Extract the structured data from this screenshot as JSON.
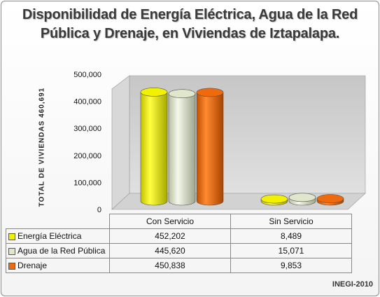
{
  "title_line1": "Disponibilidad de Energía Eléctrica, Agua de la Red",
  "title_line2": "Pública y Drenaje, en Viviendas de Iztapalapa.",
  "source": "INEGI-2010",
  "chart_data": {
    "type": "bar",
    "title": "Disponibilidad de Energía Eléctrica, Agua de la Red Pública y Drenaje, en Viviendas de Iztapalapa.",
    "ylabel": "TOTAL DE VIVIENDAS  460,691",
    "xlabel": "",
    "categories": [
      "Con Servicio",
      "Sin Servicio"
    ],
    "ylim": [
      0,
      500000
    ],
    "yticks": [
      "0",
      "100,000",
      "200,000",
      "300,000",
      "400,000",
      "500,000"
    ],
    "series": [
      {
        "name": "Energía Eléctrica",
        "color": "#f2f200",
        "values": [
          452202,
          8489
        ],
        "labels": [
          "452,202",
          "8,489"
        ]
      },
      {
        "name": "Agua de la Red Pública",
        "color": "#dfe6cc",
        "values": [
          445620,
          15071
        ],
        "labels": [
          "445,620",
          "15,071"
        ]
      },
      {
        "name": "Drenaje",
        "color": "#ee6a0c",
        "values": [
          450838,
          9853
        ],
        "labels": [
          "450,838",
          "9,853"
        ]
      }
    ],
    "legend": "table-left",
    "grid": false
  }
}
